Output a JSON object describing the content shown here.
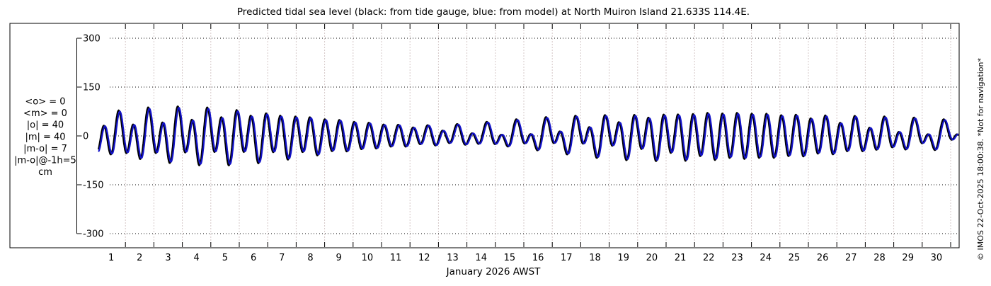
{
  "chart_data": {
    "type": "line",
    "title": "Predicted tidal sea level (black: from tide gauge, blue: from model) at North Muiron Island 21.633S 114.4E.",
    "xlabel": "January 2026 AWST",
    "y_unit": "cm",
    "ylim": [
      -300,
      300
    ],
    "y_ticks": [
      300,
      150,
      0,
      -150,
      -300
    ],
    "y_tick_labels": [
      "300",
      "150",
      "0",
      "-150",
      "-300"
    ],
    "x_tick_labels": [
      "1",
      "2",
      "3",
      "4",
      "5",
      "6",
      "7",
      "8",
      "9",
      "10",
      "11",
      "12",
      "13",
      "14",
      "15",
      "16",
      "17",
      "18",
      "19",
      "20",
      "21",
      "22",
      "23",
      "24",
      "25",
      "26",
      "27",
      "28",
      "29",
      "30"
    ],
    "x_range_days": [
      0.05,
      30.28
    ],
    "grid": true,
    "legend_position": "in-title",
    "series": [
      {
        "name": "tide gauge (observed)",
        "color": "#000000",
        "amp_scale": 1.05,
        "lead_days": 0.042,
        "width": 2.2
      },
      {
        "name": "model prediction",
        "color": "#1212c8",
        "amp_scale": 1.0,
        "lead_days": 0,
        "width": 2.2
      }
    ],
    "model": {
      "description": "Mixed semidiurnal tide, cm. Springs ~±90 cm near Jan 4 and Jan 20-22, neaps ~±30 cm near Jan 13 and Jan 27-29, strong diurnal inequality early and late in the month.",
      "semidiurnal": {
        "mean_amp_cm": 45,
        "mod_amp_cm": 22,
        "beat_period_days": 18.0,
        "spring_center_day": 4.2,
        "period_days": 0.5175,
        "crest_day": 0.8
      },
      "diurnal": {
        "mean_amp_cm": 14,
        "mod_amp_cm": 13,
        "beat_period_days": 13.66,
        "max_center_day": 2.8,
        "period_days": 1.0758,
        "crest_day": 0.83
      }
    },
    "stats_box": {
      "lines": [
        "<o> = 0",
        "<m> = 0",
        "|o| = 40",
        "|m| = 40",
        "|m-o| = 7",
        "|m-o|@-1h=5",
        "cm"
      ]
    },
    "watermark": "© IMOS 22-Oct-2025 18:00:38. *Not for navigation*",
    "colors": {
      "model_line": "#1212c8",
      "gauge_line": "#000000",
      "h_grid": "#000000",
      "v_grid": "#d5c8c8",
      "frame": "#000000"
    }
  }
}
